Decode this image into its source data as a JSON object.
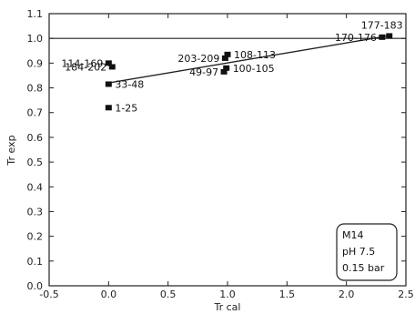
{
  "chart_data": {
    "type": "scatter",
    "xlabel": "Tr cal",
    "ylabel": "Tr exp",
    "xlim": [
      -0.5,
      2.5
    ],
    "ylim": [
      0.0,
      1.1
    ],
    "xticks": [
      "-0.5",
      "0.0",
      "0.5",
      "1.0",
      "1.5",
      "2.0",
      "2.5"
    ],
    "yticks": [
      "0.0",
      "0.1",
      "0.2",
      "0.3",
      "0.4",
      "0.5",
      "0.6",
      "0.7",
      "0.8",
      "0.9",
      "1.0",
      "1.1"
    ],
    "reference_line_y": 1.0,
    "fit_line": {
      "x": [
        0.0,
        2.35
      ],
      "y": [
        0.82,
        1.01
      ]
    },
    "points": [
      {
        "label": "114-169",
        "x": 0.0,
        "y": 0.9,
        "label_pos": "left"
      },
      {
        "label": "184-202",
        "x": 0.03,
        "y": 0.885,
        "label_pos": "left"
      },
      {
        "label": "33-48",
        "x": 0.0,
        "y": 0.815,
        "label_pos": "right"
      },
      {
        "label": "1-25",
        "x": 0.0,
        "y": 0.72,
        "label_pos": "right"
      },
      {
        "label": "203-209",
        "x": 0.98,
        "y": 0.92,
        "label_pos": "left"
      },
      {
        "label": "108-113",
        "x": 1.0,
        "y": 0.935,
        "label_pos": "right"
      },
      {
        "label": "49-97",
        "x": 0.97,
        "y": 0.865,
        "label_pos": "left"
      },
      {
        "label": "100-105",
        "x": 0.99,
        "y": 0.88,
        "label_pos": "right"
      },
      {
        "label": "170-176",
        "x": 2.3,
        "y": 1.005,
        "label_pos": "left"
      },
      {
        "label": "177-183",
        "x": 2.36,
        "y": 1.01,
        "label_pos": "above"
      }
    ]
  },
  "legend_box": {
    "lines": [
      "M14",
      "pH 7.5",
      "0.15 bar"
    ],
    "position": "bottom-right"
  }
}
